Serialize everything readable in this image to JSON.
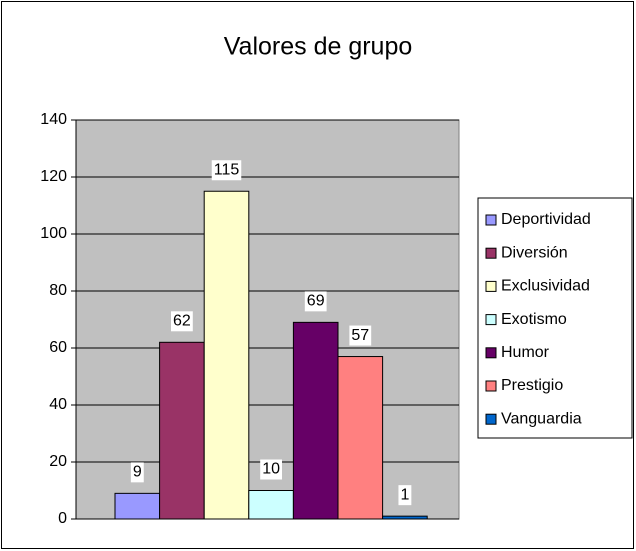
{
  "chart_data": {
    "type": "bar",
    "title": "Valores de grupo",
    "series": [
      {
        "name": "Deportividad",
        "color": "#9999ff",
        "values": [
          9
        ]
      },
      {
        "name": "Diversión",
        "color": "#993366",
        "values": [
          62
        ]
      },
      {
        "name": "Exclusividad",
        "color": "#ffffcc",
        "values": [
          115
        ]
      },
      {
        "name": "Exotismo",
        "color": "#ccffff",
        "values": [
          10
        ]
      },
      {
        "name": "Humor",
        "color": "#660066",
        "values": [
          69
        ]
      },
      {
        "name": "Prestigio",
        "color": "#ff8080",
        "values": [
          57
        ]
      },
      {
        "name": "Vanguardia",
        "color": "#0066cc",
        "values": [
          1
        ]
      }
    ],
    "ylim": [
      0,
      140
    ],
    "yticks": [
      0,
      20,
      40,
      60,
      80,
      100,
      120,
      140
    ],
    "grid": true,
    "legend": "right"
  }
}
